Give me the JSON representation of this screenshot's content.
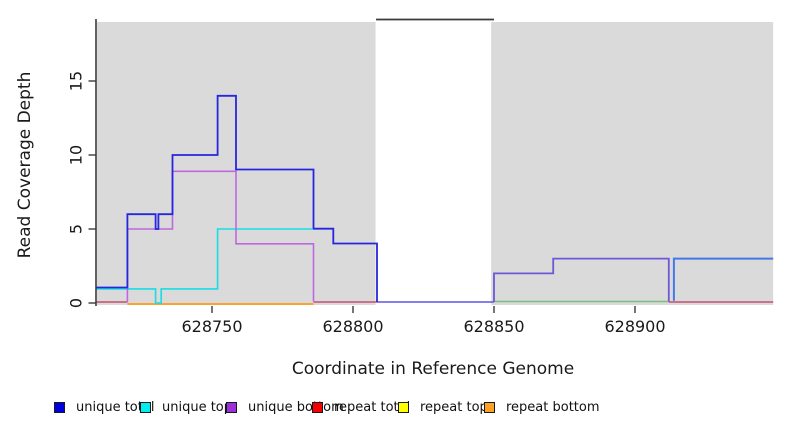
{
  "figure": {
    "xlabel": "Coordinate in Reference Genome",
    "ylabel": "Read Coverage Depth"
  },
  "legend": {
    "items": [
      {
        "label": "unique total",
        "color": "#0000E0"
      },
      {
        "label": "unique top",
        "color": "#00EEEE"
      },
      {
        "label": "unique bottom",
        "color": "#9B30D9"
      },
      {
        "label": "repeat total",
        "color": "#F50000"
      },
      {
        "label": "repeat top",
        "color": "#FFFF00"
      },
      {
        "label": "repeat bottom",
        "color": "#FFA126"
      }
    ]
  },
  "chart_data": {
    "type": "line",
    "title": "",
    "xlabel": "Coordinate in Reference Genome",
    "ylabel": "Read Coverage Depth",
    "x_ticks": [
      628750,
      628800,
      628850,
      628900
    ],
    "y_ticks": [
      0,
      5,
      10,
      15
    ],
    "x_range": [
      628709,
      628949
    ],
    "y_range": [
      0,
      19.2
    ],
    "grid": false,
    "legend_position": "bottom",
    "panel_color": "#DADADA",
    "axis_color": "#3A3A3A",
    "masked_region": [
      628808,
      628849
    ],
    "masked_region_top_line": true,
    "shaded_regions": [
      [
        628709,
        628808
      ],
      [
        628849,
        628949
      ]
    ],
    "series": [
      {
        "name": "unique total",
        "color": "#0000E0",
        "steps": [
          [
            628709,
            1
          ],
          [
            628720,
            6
          ],
          [
            628730,
            5
          ],
          [
            628731,
            6
          ],
          [
            628736,
            10
          ],
          [
            628752,
            14
          ],
          [
            628758,
            9
          ],
          [
            628786,
            5
          ],
          [
            628793,
            4
          ],
          [
            628808,
            0
          ],
          [
            628850,
            2
          ],
          [
            628871,
            3
          ],
          [
            628912,
            0
          ],
          [
            628914,
            3
          ],
          [
            628949,
            3
          ]
        ]
      },
      {
        "name": "unique top",
        "color": "#00EEEE",
        "steps": [
          [
            628709,
            1
          ],
          [
            628730,
            0
          ],
          [
            628732,
            1
          ],
          [
            628752,
            5
          ],
          [
            628786,
            5
          ],
          [
            628793,
            4
          ],
          [
            628808,
            0
          ]
        ]
      },
      {
        "name": "unique bottom",
        "color": "#9B30D9",
        "steps": [
          [
            628709,
            0
          ],
          [
            628720,
            5
          ],
          [
            628736,
            9
          ],
          [
            628758,
            4
          ],
          [
            628786,
            0
          ],
          [
            628850,
            2
          ],
          [
            628871,
            3
          ],
          [
            628912,
            0
          ]
        ]
      },
      {
        "name": "repeat total",
        "color": "#F50000",
        "steps": [
          [
            628709,
            0
          ],
          [
            628949,
            0
          ]
        ]
      },
      {
        "name": "repeat top",
        "color": "#FFFF00",
        "steps": [
          [
            628709,
            0
          ],
          [
            628949,
            0
          ]
        ]
      },
      {
        "name": "repeat bottom",
        "color": "#FFA126",
        "steps": [
          [
            628720,
            0
          ],
          [
            628786,
            0
          ]
        ]
      }
    ],
    "visible_lines": [
      {
        "name": "repeat-bottom-zero-line",
        "color": "#FF9A1E",
        "width": 1.8,
        "pts": [
          [
            628720,
            -0.07
          ],
          [
            628786,
            -0.07
          ]
        ]
      },
      {
        "name": "zero-line-rose-left",
        "color": "#C64E73",
        "width": 1.5,
        "pts": [
          [
            628709,
            0.07
          ],
          [
            628720,
            0.07
          ]
        ]
      },
      {
        "name": "zero-line-rose-mid",
        "color": "#C64E73",
        "width": 1.5,
        "pts": [
          [
            628786,
            0.07
          ],
          [
            628808.5,
            0.07
          ]
        ]
      },
      {
        "name": "zero-line-rose-right",
        "color": "#C64E73",
        "width": 1.5,
        "pts": [
          [
            628912,
            0.07
          ],
          [
            628949,
            0.07
          ]
        ]
      },
      {
        "name": "zero-line-green",
        "color": "#7CBE7C",
        "width": 1.5,
        "pts": [
          [
            628850,
            0.1
          ],
          [
            628912,
            0.1
          ]
        ]
      },
      {
        "name": "gap-zero-line-blue",
        "color": "#5C55E5",
        "width": 1.6,
        "pts": [
          [
            628808.5,
            0.07
          ],
          [
            628850,
            0.07
          ]
        ]
      },
      {
        "name": "unique-top-line",
        "color": "#17DCE6",
        "width": 1.6,
        "pts": [
          [
            628709,
            0.95
          ],
          [
            628730,
            0.95
          ],
          [
            628730,
            0
          ],
          [
            628732,
            0
          ],
          [
            628732,
            0.95
          ],
          [
            628752,
            0.95
          ],
          [
            628752,
            5
          ],
          [
            628785.5,
            5
          ]
        ]
      },
      {
        "name": "unique-bottom-line",
        "color": "#BE68DF",
        "width": 1.6,
        "pts": [
          [
            628720,
            0.05
          ],
          [
            628720,
            5
          ],
          [
            628736,
            5
          ],
          [
            628736,
            8.9
          ],
          [
            628758.5,
            8.9
          ],
          [
            628758.5,
            4
          ],
          [
            628786,
            4
          ],
          [
            628786,
            0.1
          ]
        ]
      },
      {
        "name": "unique-total-line-left",
        "color": "#2626DE",
        "width": 1.8,
        "pts": [
          [
            628709,
            1.05
          ],
          [
            628720,
            1.05
          ],
          [
            628720,
            6
          ],
          [
            628730,
            6
          ],
          [
            628730,
            5
          ],
          [
            628731,
            5
          ],
          [
            628731,
            6
          ],
          [
            628736,
            6
          ],
          [
            628736,
            10
          ],
          [
            628752,
            10
          ],
          [
            628752,
            14
          ],
          [
            628758.5,
            14
          ],
          [
            628758.5,
            9.02
          ],
          [
            628786,
            9.02
          ],
          [
            628786,
            5.02
          ],
          [
            628793,
            5.02
          ],
          [
            628793,
            4.02
          ],
          [
            628808.5,
            4.02
          ],
          [
            628808.5,
            0.07
          ]
        ]
      },
      {
        "name": "unique-total-line-right-overlap",
        "color": "#7056D8",
        "width": 1.8,
        "pts": [
          [
            628850,
            0.07
          ],
          [
            628850,
            2
          ],
          [
            628871,
            2
          ],
          [
            628871,
            3
          ],
          [
            628912,
            3
          ],
          [
            628912,
            0.1
          ]
        ]
      },
      {
        "name": "unique-total-line-right",
        "color": "#4478E8",
        "width": 2,
        "pts": [
          [
            628913.8,
            0.15
          ],
          [
            628913.8,
            3
          ],
          [
            628949,
            3
          ]
        ]
      }
    ]
  }
}
